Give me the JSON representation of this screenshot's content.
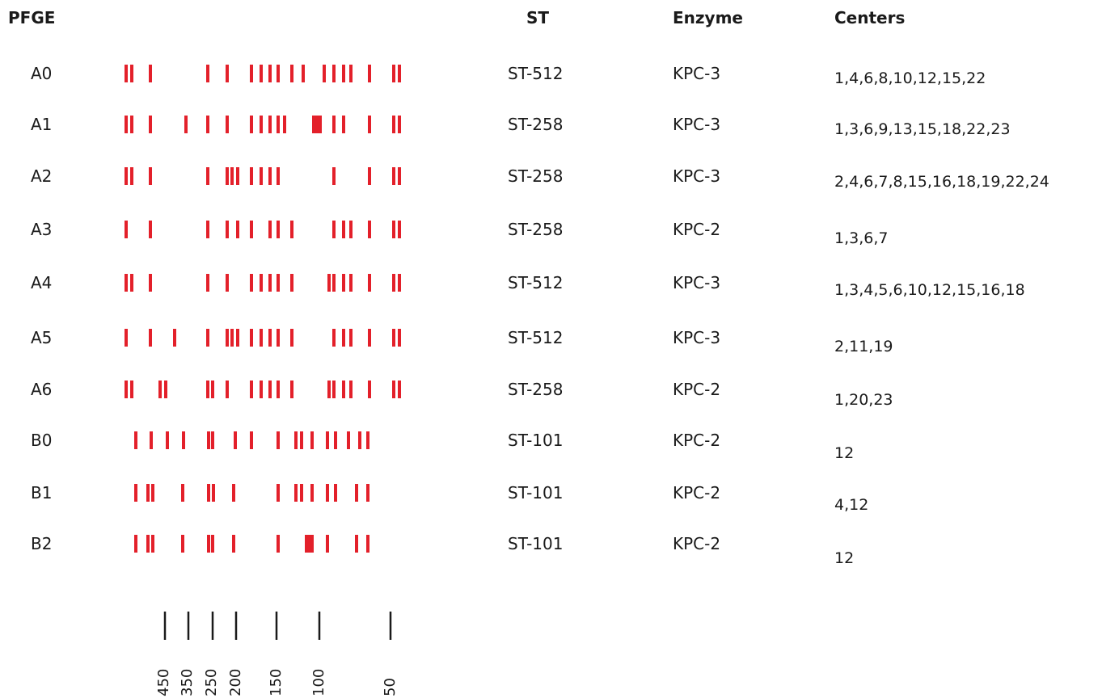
{
  "headers": {
    "pfge": "PFGE",
    "st": "ST",
    "enzyme": "Enzyme",
    "centers": "Centers"
  },
  "colors": {
    "band": "#e3202a",
    "marker": "#1a1a1a",
    "text": "#1a1a1a"
  },
  "rows": [
    {
      "name": "A0",
      "st": "ST-512",
      "enzyme": "KPC-3",
      "centers": "1,4,6,8,10,12,15,22"
    },
    {
      "name": "A1",
      "st": "ST-258",
      "enzyme": "KPC-3",
      "centers": "1,3,6,9,13,15,18,22,23"
    },
    {
      "name": "A2",
      "st": "ST-258",
      "enzyme": "KPC-3",
      "centers": "2,4,6,7,8,15,16,18,19,22,24"
    },
    {
      "name": "A3",
      "st": "ST-258",
      "enzyme": "KPC-2",
      "centers": "1,3,6,7"
    },
    {
      "name": "A4",
      "st": "ST-512",
      "enzyme": "KPC-3",
      "centers": "1,3,4,5,6,10,12,15,16,18"
    },
    {
      "name": "A5",
      "st": "ST-512",
      "enzyme": "KPC-3",
      "centers": "2,11,19"
    },
    {
      "name": "A6",
      "st": "ST-258",
      "enzyme": "KPC-2",
      "centers": "1,20,23"
    },
    {
      "name": "B0",
      "st": "ST-101",
      "enzyme": "KPC-2",
      "centers": "12"
    },
    {
      "name": "B1",
      "st": "ST-101",
      "enzyme": "KPC-2",
      "centers": "4,12"
    },
    {
      "name": "B2",
      "st": "ST-101",
      "enzyme": "KPC-2",
      "centers": "12"
    }
  ],
  "scale_labels": [
    "450",
    "350",
    "250",
    "200",
    "150",
    "100",
    "50"
  ]
}
